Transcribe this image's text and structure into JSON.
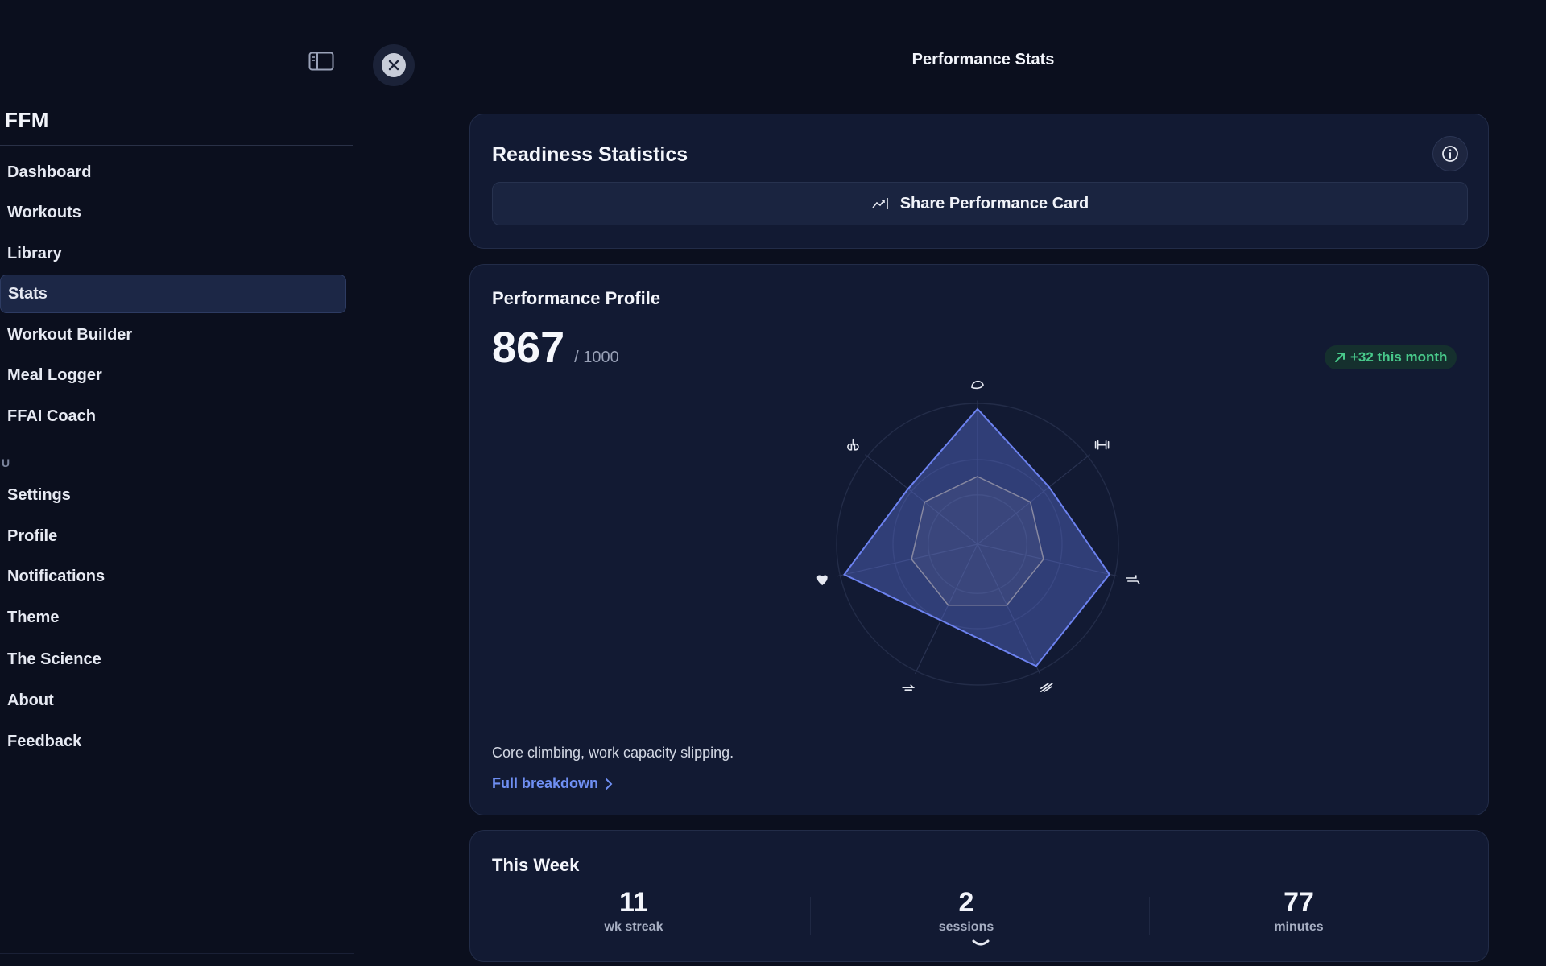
{
  "app": {
    "name": "FFM",
    "page_title": "Performance Stats"
  },
  "sidebar": {
    "items": [
      {
        "label": "Dashboard"
      },
      {
        "label": "Workouts"
      },
      {
        "label": "Library"
      },
      {
        "label": "Stats",
        "active": true
      },
      {
        "label": "Workout Builder"
      },
      {
        "label": "Meal Logger"
      },
      {
        "label": "FFAI Coach"
      }
    ],
    "section_label": "U",
    "secondary_items": [
      {
        "label": "Settings"
      },
      {
        "label": "Profile"
      },
      {
        "label": "Notifications"
      },
      {
        "label": "Theme"
      },
      {
        "label": "The Science"
      },
      {
        "label": "About"
      },
      {
        "label": "Feedback"
      }
    ]
  },
  "readiness": {
    "title": "Readiness Statistics",
    "share_label": "Share Performance Card"
  },
  "profile": {
    "title": "Performance Profile",
    "score": "867",
    "score_max": "/ 1000",
    "trend": "+32 this month",
    "insight": "Core climbing, work capacity slipping.",
    "link_label": "Full breakdown",
    "radar_axes_icons": [
      "strength-icon",
      "dumbbell-icon",
      "speed-icon",
      "sprint-icon",
      "mobility-icon",
      "heart-icon",
      "lungs-icon"
    ],
    "radar_current": [
      0.96,
      0.65,
      0.96,
      0.96,
      0.6,
      0.97,
      0.63
    ],
    "radar_baseline": [
      0.48,
      0.48,
      0.48,
      0.48,
      0.48,
      0.48,
      0.48
    ]
  },
  "week": {
    "title": "This Week",
    "stats": [
      {
        "value": "11",
        "label": "wk streak"
      },
      {
        "value": "2",
        "label": "sessions"
      },
      {
        "value": "77",
        "label": "minutes"
      }
    ]
  },
  "colors": {
    "background": "#0b0f1e",
    "card": "#121a33",
    "accent": "#6f8ff3",
    "positive": "#48c98a",
    "radar_fill": "#5b6fd6",
    "radar_baseline": "#a89a7a"
  }
}
